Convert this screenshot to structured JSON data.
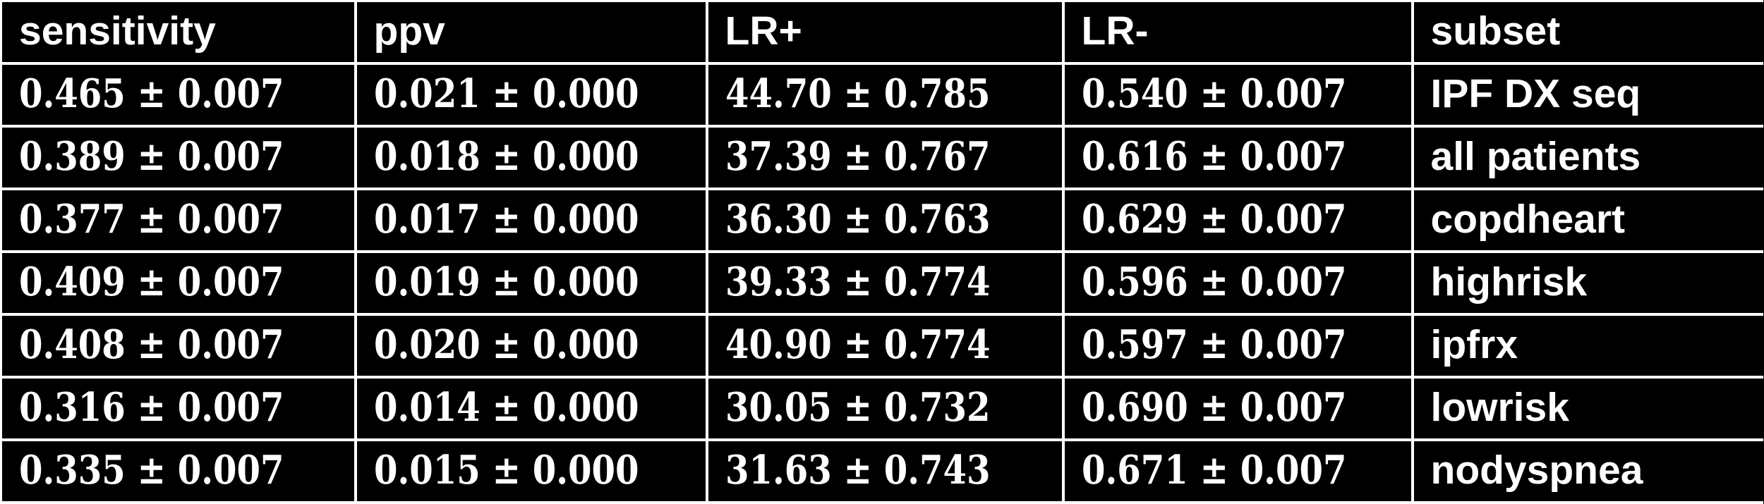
{
  "colors": {
    "background": "#000000",
    "text": "#ffffff",
    "grid_lines": "#ffffff"
  },
  "chart_data": {
    "type": "table",
    "columns": [
      "sensitivity",
      "ppv",
      "LR+",
      "LR-",
      "subset"
    ],
    "rows": [
      [
        "0.465 ± 0.007",
        "0.021 ± 0.000",
        "44.70 ± 0.785",
        "0.540 ± 0.007",
        "IPF DX seq"
      ],
      [
        "0.389 ± 0.007",
        "0.018 ± 0.000",
        "37.39 ± 0.767",
        "0.616 ± 0.007",
        "all patients"
      ],
      [
        "0.377 ± 0.007",
        "0.017 ± 0.000",
        "36.30 ± 0.763",
        "0.629 ± 0.007",
        "copdheart"
      ],
      [
        "0.409 ± 0.007",
        "0.019 ± 0.000",
        "39.33 ± 0.774",
        "0.596 ± 0.007",
        "highrisk"
      ],
      [
        "0.408 ± 0.007",
        "0.020 ± 0.000",
        "40.90 ± 0.774",
        "0.597 ± 0.007",
        "ipfrx"
      ],
      [
        "0.316 ± 0.007",
        "0.014 ± 0.000",
        "30.05 ± 0.732",
        "0.690 ± 0.007",
        "lowrisk"
      ],
      [
        "0.335 ± 0.007",
        "0.015 ± 0.000",
        "31.63 ± 0.743",
        "0.671 ± 0.007",
        "nodyspnea"
      ]
    ]
  }
}
